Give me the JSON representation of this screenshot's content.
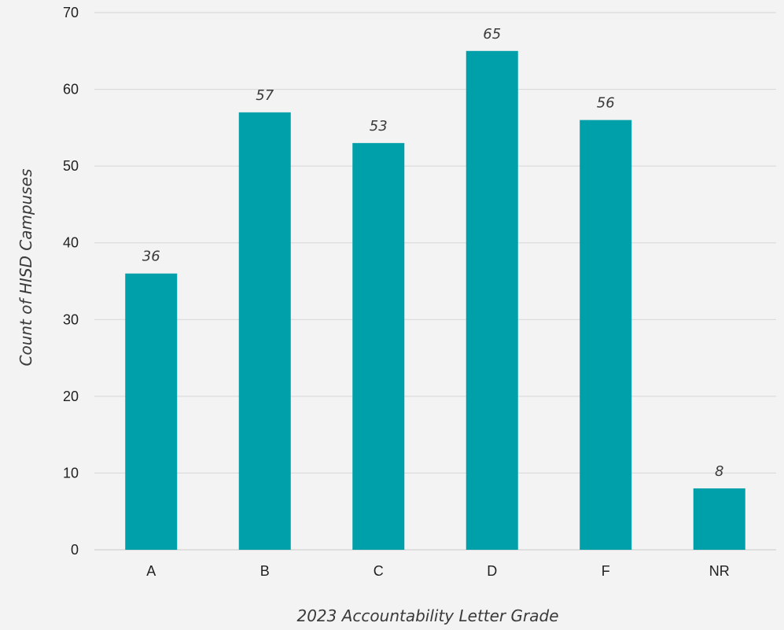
{
  "chart_data": {
    "type": "bar",
    "title": "",
    "xlabel": "2023 Accountability Letter Grade",
    "ylabel": "Count of HISD Campuses",
    "categories": [
      "A",
      "B",
      "C",
      "D",
      "F",
      "NR"
    ],
    "values": [
      36,
      57,
      53,
      65,
      56,
      8
    ],
    "ylim": [
      0,
      70
    ],
    "yticks": [
      0,
      10,
      20,
      30,
      40,
      50,
      60,
      70
    ],
    "grid": true,
    "legend": "none",
    "data_labels": true,
    "colors": {
      "bar": "#00A0AA",
      "background": "#F3F3F3",
      "grid": "#D6D6D6"
    }
  }
}
